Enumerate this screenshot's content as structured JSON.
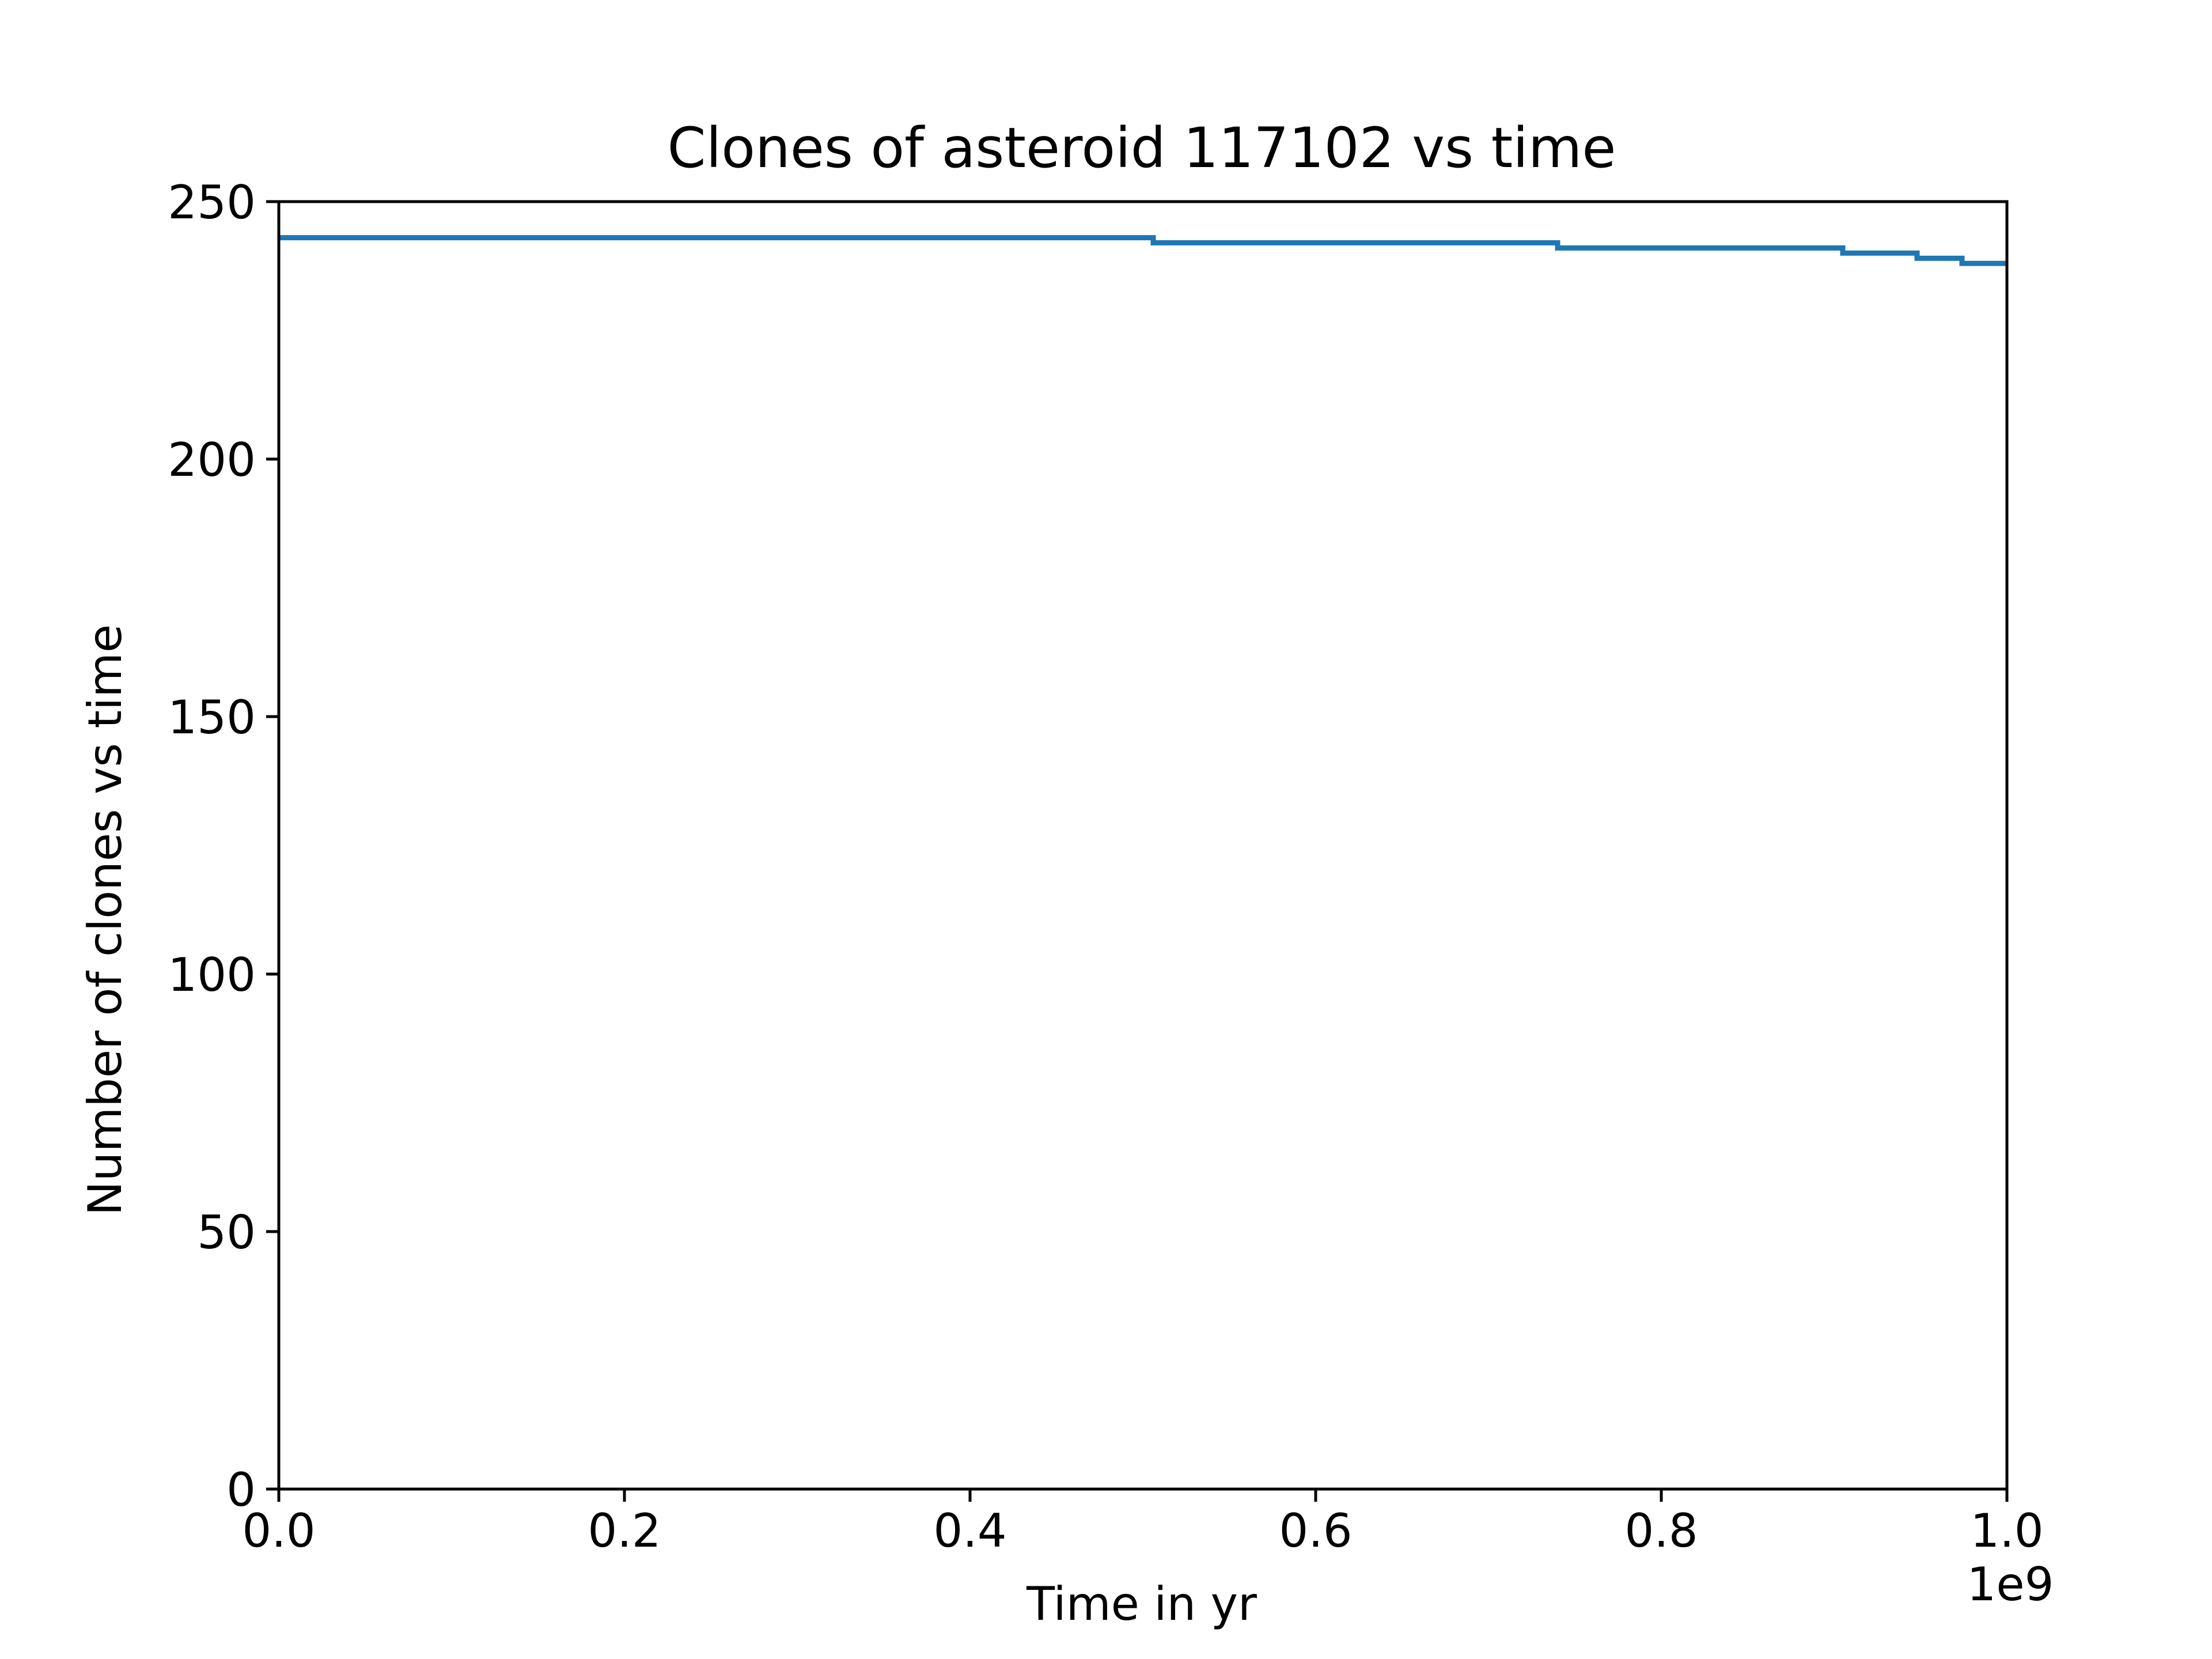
{
  "chart_data": {
    "type": "line",
    "title": "Clones of asteroid 117102 vs time",
    "xlabel": "Time in yr",
    "ylabel": "Number of clones vs time",
    "x_offset_text": "1e9",
    "xlim": [
      0,
      1000000000
    ],
    "ylim": [
      0,
      250
    ],
    "x_ticks": [
      0,
      200000000,
      400000000,
      600000000,
      800000000,
      1000000000
    ],
    "x_tick_labels": [
      "0.0",
      "0.2",
      "0.4",
      "0.6",
      "0.8",
      "1.0"
    ],
    "y_ticks": [
      0,
      50,
      100,
      150,
      200,
      250
    ],
    "y_tick_labels": [
      "0",
      "50",
      "100",
      "150",
      "200",
      "250"
    ],
    "grid": false,
    "series": [
      {
        "color": "#1f77b4",
        "step": true,
        "x": [
          0,
          506000000,
          740000000,
          905000000,
          948000000,
          974000000,
          1000000000
        ],
        "y": [
          243,
          242,
          241,
          240,
          239,
          238,
          238
        ]
      }
    ]
  }
}
